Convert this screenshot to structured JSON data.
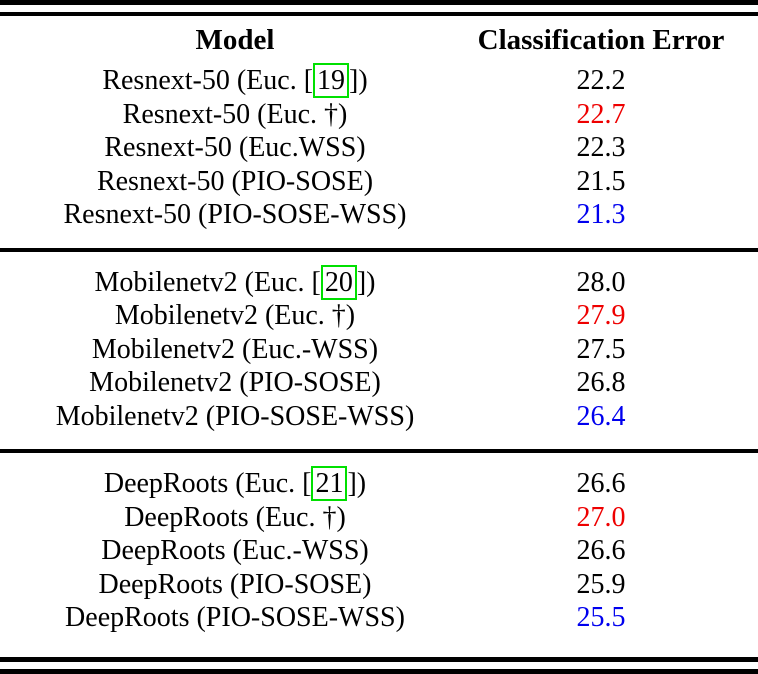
{
  "palette": {
    "black": "#000000",
    "red": "#ee0000",
    "blue": "#0000ee",
    "cite_border": "#00e000"
  },
  "header": {
    "model": "Model",
    "error": "Classification Error"
  },
  "groups": [
    {
      "rows": [
        {
          "pre": "Resnext-50 (Euc. [",
          "cite": "19",
          "post": "])",
          "value": "22.2",
          "value_color": "black"
        },
        {
          "pre": "Resnext-50 (Euc. †)",
          "cite": "",
          "post": "",
          "value": "22.7",
          "value_color": "red"
        },
        {
          "pre": "Resnext-50 (Euc.WSS)",
          "cite": "",
          "post": "",
          "value": "22.3",
          "value_color": "black"
        },
        {
          "pre": "Resnext-50 (PIO-SOSE)",
          "cite": "",
          "post": "",
          "value": "21.5",
          "value_color": "black"
        },
        {
          "pre": "Resnext-50 (PIO-SOSE-WSS)",
          "cite": "",
          "post": "",
          "value": "21.3",
          "value_color": "blue"
        }
      ]
    },
    {
      "rows": [
        {
          "pre": "Mobilenetv2 (Euc. [",
          "cite": "20",
          "post": "])",
          "value": "28.0",
          "value_color": "black"
        },
        {
          "pre": "Mobilenetv2 (Euc. †)",
          "cite": "",
          "post": "",
          "value": "27.9",
          "value_color": "red"
        },
        {
          "pre": "Mobilenetv2 (Euc.-WSS)",
          "cite": "",
          "post": "",
          "value": "27.5",
          "value_color": "black"
        },
        {
          "pre": "Mobilenetv2 (PIO-SOSE)",
          "cite": "",
          "post": "",
          "value": "26.8",
          "value_color": "black"
        },
        {
          "pre": "Mobilenetv2 (PIO-SOSE-WSS)",
          "cite": "",
          "post": "",
          "value": "26.4",
          "value_color": "blue"
        }
      ]
    },
    {
      "rows": [
        {
          "pre": "DeepRoots (Euc. [",
          "cite": "21",
          "post": "])",
          "value": "26.6",
          "value_color": "black"
        },
        {
          "pre": "DeepRoots (Euc. †)",
          "cite": "",
          "post": "",
          "value": "27.0",
          "value_color": "red"
        },
        {
          "pre": "DeepRoots (Euc.-WSS)",
          "cite": "",
          "post": "",
          "value": "26.6",
          "value_color": "black"
        },
        {
          "pre": "DeepRoots (PIO-SOSE)",
          "cite": "",
          "post": "",
          "value": "25.9",
          "value_color": "black"
        },
        {
          "pre": "DeepRoots (PIO-SOSE-WSS)",
          "cite": "",
          "post": "",
          "value": "25.5",
          "value_color": "blue"
        }
      ]
    }
  ]
}
